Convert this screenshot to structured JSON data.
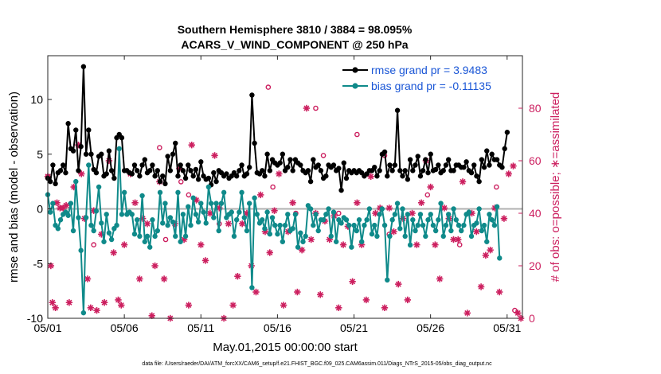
{
  "chart_data": {
    "type": "line",
    "title": "Southern Hemisphere 3810 / 3884 = 98.095%",
    "subtitle": "ACARS_V_WIND_COMPONENT @ 250 hPa",
    "xlabel": "May.01,2015 00:00:00 start",
    "ylabel": "rmse and bias (model - observation)",
    "ylabel_right": "# of obs: o=possible; ∗=assimilated",
    "x_tick_labels": [
      "05/01",
      "05/06",
      "05/11",
      "05/16",
      "05/21",
      "05/26",
      "05/31"
    ],
    "x_tick_days": [
      1,
      6,
      11,
      16,
      21,
      26,
      31
    ],
    "xlim": [
      1,
      32
    ],
    "ylim": [
      -10,
      14
    ],
    "y_ticks": [
      -10,
      -5,
      0,
      5,
      10
    ],
    "ylim_right": [
      0,
      100
    ],
    "y_ticks_right": [
      0,
      20,
      40,
      60,
      80
    ],
    "colors": {
      "rmse": "#000000",
      "bias": "#0f8a8a",
      "obs": "#cc1f5f",
      "zero": "#b0b0b0"
    },
    "series": [
      {
        "name": "rmse grand pr = 3.9483",
        "values": [
          2.8,
          2.5,
          4.0,
          2.3,
          3.3,
          3.5,
          4.0,
          3.3,
          7.8,
          5.5,
          5.3,
          7.2,
          3.5,
          5.7,
          13.0,
          5.0,
          7.2,
          5.0,
          3.6,
          3.3,
          4.8,
          5.0,
          3.0,
          3.2,
          5.3,
          3.5,
          2.8,
          6.5,
          6.8,
          6.5,
          3.5,
          3.5,
          3.3,
          3.2,
          4.0,
          3.5,
          3.0,
          4.0,
          4.5,
          3.3,
          3.5,
          4.0,
          3.0,
          3.5,
          2.5,
          3.0,
          2.3,
          4.8,
          3.5,
          5.0,
          6.0,
          3.0,
          4.0,
          3.5,
          2.8,
          4.0,
          3.5,
          3.0,
          3.6,
          2.7,
          4.3,
          3.0,
          2.7,
          2.8,
          2.2,
          3.3,
          2.5,
          3.5,
          3.3,
          3.0,
          3.2,
          2.8,
          3.0,
          3.3,
          3.0,
          3.5,
          4.0,
          3.0,
          3.2,
          3.8,
          10.4,
          6.0,
          3.3,
          3.2,
          3.5,
          3.0,
          5.0,
          3.5,
          4.5,
          4.2,
          4.0,
          4.2,
          5.0,
          3.5,
          3.8,
          4.5,
          3.5,
          4.5,
          4.2,
          4.0,
          3.5,
          3.3,
          3.5,
          2.5,
          4.5,
          3.8,
          4.0,
          3.5,
          2.8,
          3.0,
          4.0,
          3.8,
          4.0,
          3.5,
          3.7,
          1.7,
          4.2,
          2.8,
          3.5,
          3.3,
          3.5,
          3.3,
          3.5,
          3.3,
          3.0,
          3.2,
          3.5,
          3.5,
          3.8,
          3.0,
          3.5,
          5.0,
          5.2,
          3.0,
          4.0,
          3.5,
          4.0,
          9.0,
          3.5,
          3.0,
          3.5,
          2.7,
          4.5,
          3.5,
          4.0,
          4.8,
          3.0,
          3.5,
          4.5,
          3.3,
          5.0,
          3.5,
          3.6,
          4.0,
          3.3,
          3.5,
          4.0,
          4.5,
          3.5,
          3.5,
          4.0,
          4.0,
          3.8,
          3.8,
          4.3,
          3.5,
          3.3,
          4.0,
          3.0,
          2.5,
          4.5,
          3.8,
          5.3,
          4.0,
          5.0,
          4.5,
          4.5,
          4.0,
          3.8,
          5.5,
          7.0
        ],
        "x_start": 1.0,
        "x_step": 0.1667
      },
      {
        "name": "bias grand pr = -0.11135",
        "values": [
          1.3,
          -0.3,
          0.5,
          -1.5,
          -1.8,
          -1.0,
          -0.5,
          -0.3,
          -0.6,
          0.5,
          -2.0,
          2.5,
          -0.8,
          -3.8,
          -9.5,
          -0.8,
          4.0,
          -1.5,
          -2.0,
          -0.2,
          2.0,
          -1.3,
          -3.0,
          -0.5,
          -2.2,
          -2.8,
          -1.8,
          -1.5,
          5.5,
          -0.5,
          1.5,
          -0.5,
          -0.3,
          -0.5,
          -2.3,
          -1.0,
          -2.5,
          1.2,
          -3.0,
          -2.5,
          -3.5,
          -1.0,
          -2.5,
          -2.0,
          1.5,
          -1.3,
          0.5,
          -1.5,
          -0.8,
          -1.2,
          -2.5,
          1.5,
          -3.0,
          -0.5,
          -2.5,
          0.2,
          -1.5,
          1.0,
          -0.5,
          -1.2,
          0.5,
          -0.3,
          -1.3,
          2.0,
          0.5,
          -0.8,
          0.5,
          -2.0,
          0.5,
          1.5,
          -0.8,
          -0.5,
          -0.3,
          -2.5,
          -1.0,
          -0.3,
          1.5,
          -0.8,
          -2.0,
          0.5,
          -7.2,
          1.0,
          -0.5,
          -1.3,
          -1.0,
          -1.8,
          -0.3,
          -2.3,
          -0.8,
          -1.5,
          -2.3,
          -1.5,
          -3.0,
          -1.5,
          -0.5,
          -2.0,
          -1.8,
          -0.5,
          -3.5,
          -2.2,
          -3.0,
          -2.5,
          0.3,
          0.0,
          -1.5,
          -0.5,
          -2.0,
          -1.0,
          -1.0,
          -0.5,
          0.0,
          -2.5,
          -0.3,
          -3.0,
          -1.0,
          -1.3,
          -0.8,
          -1.0,
          -1.5,
          -3.5,
          -1.5,
          -2.0,
          -1.0,
          -3.0,
          -1.5,
          -1.0,
          0.0,
          -2.3,
          -1.5,
          -2.5,
          -0.5,
          0.0,
          -1.5,
          -6.5,
          -2.5,
          -1.0,
          -0.5,
          0.5,
          -1.8,
          0.0,
          -2.5,
          -0.5,
          -3.3,
          -1.0,
          -2.0,
          -1.5,
          -0.5,
          -1.5,
          -2.5,
          -1.0,
          -0.5,
          -1.5,
          -2.0,
          -1.0,
          0.5,
          -2.5,
          -1.5,
          -0.5,
          -2.0,
          0.0,
          -1.0,
          -1.5,
          -2.0,
          -1.5,
          -0.5,
          -0.3,
          -2.5,
          -1.5,
          -1.3,
          0.0,
          -2.0,
          -1.5,
          -3.0,
          -0.5,
          -1.0,
          -1.5,
          0.2,
          -4.5
        ],
        "x_start": 1.0,
        "x_step": 0.1667
      }
    ],
    "obs_possible": [
      [
        8.7,
        30
      ],
      [
        10.2,
        47
      ],
      [
        15.7,
        50
      ],
      [
        15.4,
        88
      ],
      [
        17.2,
        40
      ],
      [
        9.7,
        52
      ],
      [
        1.0,
        54
      ],
      [
        4.0,
        28
      ],
      [
        30.3,
        50
      ],
      [
        21.2,
        70
      ],
      [
        23.0,
        62
      ],
      [
        25.8,
        47
      ],
      [
        27.9,
        28
      ],
      [
        18.5,
        80
      ],
      [
        12.2,
        36
      ],
      [
        8.3,
        65
      ],
      [
        19.0,
        62
      ],
      [
        23.3,
        32
      ],
      [
        20.0,
        40
      ],
      [
        31.5,
        3
      ]
    ],
    "obs_assimilated": [
      [
        1.0,
        54
      ],
      [
        1.2,
        20
      ],
      [
        1.3,
        6
      ],
      [
        1.5,
        4
      ],
      [
        1.6,
        44
      ],
      [
        1.8,
        42
      ],
      [
        2.0,
        42
      ],
      [
        2.2,
        43
      ],
      [
        2.4,
        6
      ],
      [
        2.7,
        50
      ],
      [
        3.0,
        66
      ],
      [
        3.2,
        55
      ],
      [
        3.4,
        38
      ],
      [
        3.6,
        15
      ],
      [
        3.8,
        4
      ],
      [
        4.0,
        41
      ],
      [
        4.2,
        3
      ],
      [
        4.5,
        32
      ],
      [
        4.7,
        6
      ],
      [
        5.0,
        60
      ],
      [
        5.3,
        25
      ],
      [
        5.6,
        7
      ],
      [
        5.8,
        5
      ],
      [
        6.0,
        28
      ],
      [
        6.4,
        55
      ],
      [
        6.7,
        44
      ],
      [
        7.0,
        15
      ],
      [
        7.2,
        38
      ],
      [
        7.5,
        36
      ],
      [
        7.8,
        1
      ],
      [
        8.0,
        20
      ],
      [
        8.3,
        52
      ],
      [
        8.6,
        15
      ],
      [
        9.0,
        0
      ],
      [
        9.3,
        36
      ],
      [
        9.6,
        57
      ],
      [
        9.9,
        30
      ],
      [
        10.2,
        5
      ],
      [
        10.4,
        66
      ],
      [
        10.7,
        45
      ],
      [
        11.0,
        28
      ],
      [
        11.3,
        22
      ],
      [
        11.6,
        40
      ],
      [
        11.9,
        62
      ],
      [
        12.2,
        42
      ],
      [
        12.5,
        0
      ],
      [
        12.8,
        36
      ],
      [
        13.1,
        5
      ],
      [
        13.4,
        16
      ],
      [
        13.7,
        36
      ],
      [
        14.0,
        40
      ],
      [
        14.3,
        20
      ],
      [
        14.6,
        10
      ],
      [
        14.9,
        47
      ],
      [
        15.2,
        33
      ],
      [
        15.5,
        25
      ],
      [
        15.8,
        41
      ],
      [
        16.1,
        55
      ],
      [
        16.4,
        5
      ],
      [
        16.7,
        33
      ],
      [
        17.0,
        44
      ],
      [
        17.3,
        10
      ],
      [
        17.6,
        26
      ],
      [
        17.9,
        80
      ],
      [
        18.2,
        30
      ],
      [
        18.5,
        40
      ],
      [
        18.8,
        9
      ],
      [
        19.1,
        37
      ],
      [
        19.4,
        30
      ],
      [
        19.7,
        39
      ],
      [
        20.0,
        4
      ],
      [
        20.3,
        28
      ],
      [
        20.6,
        35
      ],
      [
        20.9,
        14
      ],
      [
        21.2,
        44
      ],
      [
        21.5,
        28
      ],
      [
        21.8,
        7
      ],
      [
        22.1,
        54
      ],
      [
        22.4,
        40
      ],
      [
        22.7,
        42
      ],
      [
        23.0,
        4
      ],
      [
        23.3,
        42
      ],
      [
        23.6,
        33
      ],
      [
        23.9,
        13
      ],
      [
        24.2,
        38
      ],
      [
        24.5,
        7
      ],
      [
        24.8,
        40
      ],
      [
        25.1,
        28
      ],
      [
        25.4,
        44
      ],
      [
        25.7,
        60
      ],
      [
        26.0,
        50
      ],
      [
        26.3,
        28
      ],
      [
        26.6,
        15
      ],
      [
        26.9,
        42
      ],
      [
        27.2,
        38
      ],
      [
        27.5,
        30
      ],
      [
        27.8,
        30
      ],
      [
        28.1,
        52
      ],
      [
        28.4,
        2
      ],
      [
        28.7,
        40
      ],
      [
        29.0,
        33
      ],
      [
        29.3,
        12
      ],
      [
        29.6,
        24
      ],
      [
        29.9,
        26
      ],
      [
        30.2,
        42
      ],
      [
        30.5,
        10
      ],
      [
        30.8,
        38
      ],
      [
        31.1,
        55
      ],
      [
        31.4,
        58
      ],
      [
        31.7,
        2
      ],
      [
        31.9,
        0
      ]
    ],
    "zero_line": 0
  },
  "legend": {
    "rmse": "rmse grand pr = 3.9483",
    "bias": "bias grand pr = -0.11135"
  },
  "footer": "data file: /Users/raeder/DAI/ATM_forcXX/CAM6_setup/f.e21.FHIST_BGC.f09_025.CAM6assim.011/Diags_NTrS_2015-05/obs_diag_output.nc"
}
